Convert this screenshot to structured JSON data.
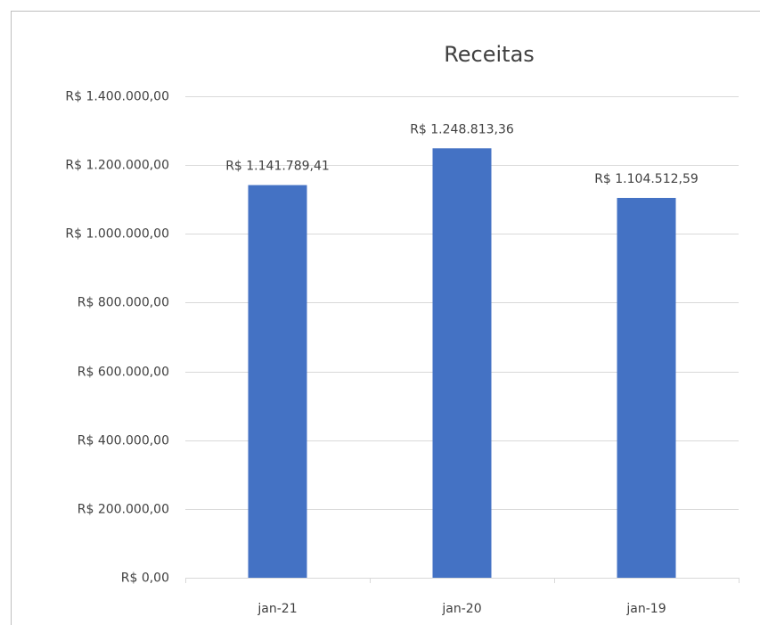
{
  "chart_data": {
    "type": "bar",
    "title": "Receitas",
    "categories": [
      "jan-21",
      "jan-20",
      "jan-19"
    ],
    "values": [
      1141789.41,
      1248813.36,
      1104512.59
    ],
    "value_labels": [
      "R$ 1.141.789,41",
      "R$ 1.248.813,36",
      "R$ 1.104.512,59"
    ],
    "color": "#4472c4",
    "ylim": [
      0,
      1400000
    ],
    "yticks": [
      {
        "value": 0,
        "label": "R$ 0,00"
      },
      {
        "value": 200000,
        "label": "R$ 200.000,00"
      },
      {
        "value": 400000,
        "label": "R$ 400.000,00"
      },
      {
        "value": 600000,
        "label": "R$ 600.000,00"
      },
      {
        "value": 800000,
        "label": "R$ 800.000,00"
      },
      {
        "value": 1000000,
        "label": "R$ 1.000.000,00"
      },
      {
        "value": 1200000,
        "label": "R$ 1.200.000,00"
      },
      {
        "value": 1400000,
        "label": "R$ 1.400.000,00"
      }
    ],
    "grid": true
  }
}
